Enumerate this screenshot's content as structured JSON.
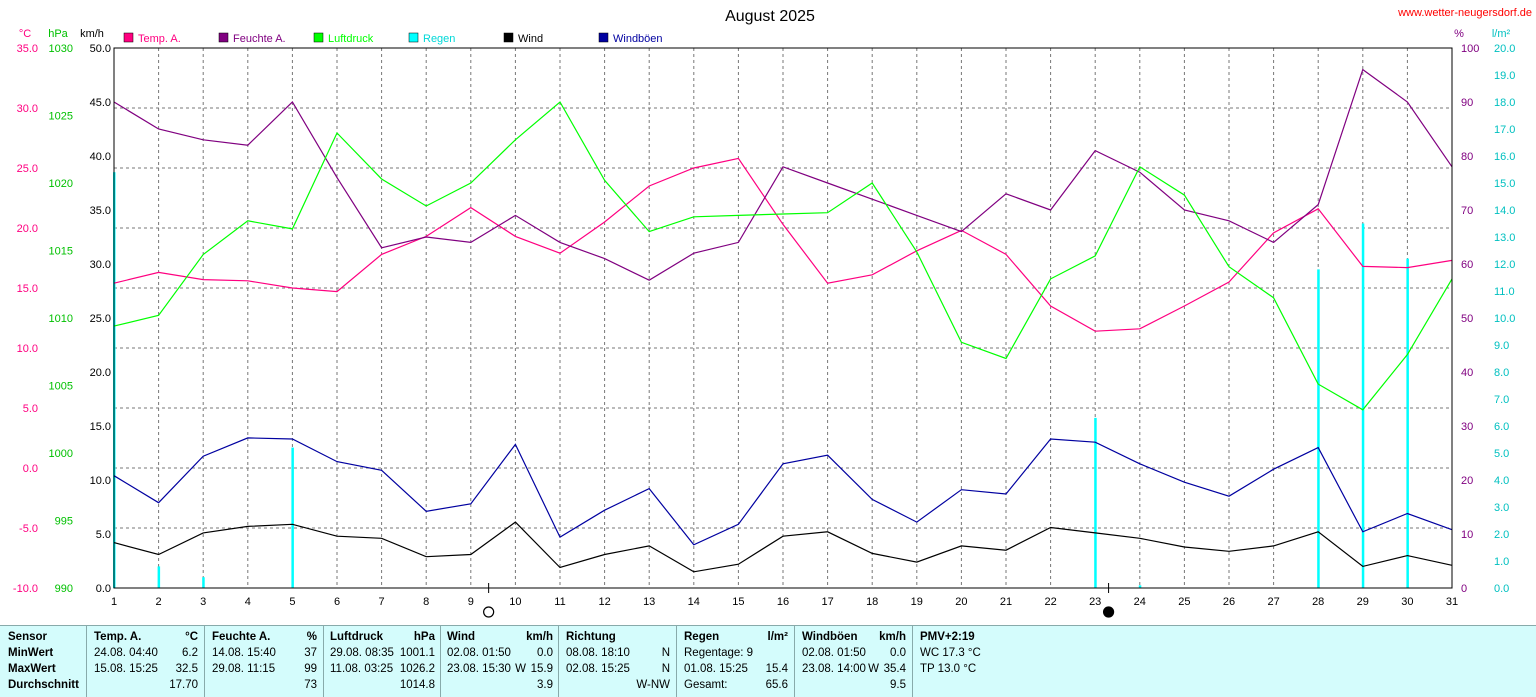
{
  "header": {
    "title": "August 2025",
    "site": "www.wetter-neugersdorf.de",
    "unit_temp": "°C",
    "unit_pressure": "hPa",
    "unit_wind": "km/h",
    "unit_humidity": "%",
    "unit_rain": "l/m²"
  },
  "legend": [
    {
      "label": "Temp. A.",
      "color": "#ff0080"
    },
    {
      "label": "Feuchte A.",
      "color": "#800080"
    },
    {
      "label": "Luftdruck",
      "color": "#00ff00"
    },
    {
      "label": "Regen",
      "color": "#00ffff"
    },
    {
      "label": "Wind",
      "color": "#000000"
    },
    {
      "label": "Windböen",
      "color": "#0000a0"
    }
  ],
  "chart_data": {
    "type": "line",
    "title": "August 2025",
    "x": [
      1,
      2,
      3,
      4,
      5,
      6,
      7,
      8,
      9,
      10,
      11,
      12,
      13,
      14,
      15,
      16,
      17,
      18,
      19,
      20,
      21,
      22,
      23,
      24,
      25,
      26,
      27,
      28,
      29,
      30,
      31
    ],
    "axes": {
      "temp": {
        "ticks": [
          "-10.0",
          "-5.0",
          "0.0",
          "5.0",
          "10.0",
          "15.0",
          "20.0",
          "25.0",
          "30.0",
          "35.0"
        ],
        "min": -10,
        "max": 35,
        "color": "#ff0080"
      },
      "pressure": {
        "ticks": [
          "990",
          "995",
          "1000",
          "1005",
          "1010",
          "1015",
          "1020",
          "1025",
          "1030"
        ],
        "min": 990,
        "max": 1030,
        "color": "#00c000"
      },
      "wind": {
        "ticks": [
          "0.0",
          "5.0",
          "10.0",
          "15.0",
          "20.0",
          "25.0",
          "30.0",
          "35.0",
          "40.0",
          "45.0",
          "50.0"
        ],
        "min": 0,
        "max": 50,
        "color": "#000000"
      },
      "humidity": {
        "ticks": [
          "0",
          "10",
          "20",
          "30",
          "40",
          "50",
          "60",
          "70",
          "80",
          "90",
          "100"
        ],
        "min": 0,
        "max": 100,
        "color": "#800080"
      },
      "rain": {
        "ticks": [
          "0.0",
          "1.0",
          "2.0",
          "3.0",
          "4.0",
          "5.0",
          "6.0",
          "7.0",
          "8.0",
          "9.0",
          "10.0",
          "11.0",
          "12.0",
          "13.0",
          "14.0",
          "15.0",
          "16.0",
          "17.0",
          "18.0",
          "19.0",
          "20.0"
        ],
        "min": 0,
        "max": 20,
        "color": "#00c0c0"
      }
    },
    "grid": true,
    "series": [
      {
        "name": "Temp. A.",
        "color": "#ff0080",
        "axis": "temp",
        "values": [
          15.4,
          16.3,
          15.7,
          15.6,
          15.0,
          14.7,
          17.8,
          19.3,
          21.7,
          19.3,
          17.9,
          20.5,
          23.5,
          25.0,
          25.8,
          20.3,
          15.4,
          16.1,
          18.1,
          19.8,
          17.8,
          13.5,
          11.4,
          11.6,
          13.5,
          15.5,
          19.6,
          21.6,
          16.8,
          16.7,
          17.3
        ]
      },
      {
        "name": "Feuchte A.",
        "color": "#800080",
        "axis": "humidity",
        "values": [
          90,
          85,
          83,
          82,
          90,
          76,
          63,
          65,
          64,
          69,
          64,
          61,
          57,
          62,
          64,
          78,
          75,
          72,
          69,
          66,
          73,
          70,
          81,
          77,
          70,
          68,
          64,
          71,
          96,
          90,
          78
        ]
      },
      {
        "name": "Luftdruck",
        "color": "#00ff00",
        "axis": "pressure",
        "values": [
          1009.4,
          1010.2,
          1014.7,
          1017.2,
          1016.6,
          1023.7,
          1020.3,
          1018.3,
          1020.0,
          1023.2,
          1026.0,
          1020.2,
          1016.4,
          1017.5,
          1017.6,
          1017.7,
          1017.8,
          1020.0,
          1014.9,
          1008.2,
          1007.0,
          1012.9,
          1014.6,
          1021.2,
          1019.1,
          1013.8,
          1011.5,
          1005.1,
          1003.2,
          1007.3,
          1012.9
        ]
      },
      {
        "name": "Regen",
        "color": "#00ffff",
        "axis": "rain",
        "type": "bar",
        "values": [
          15.4,
          0.8,
          0.4,
          0.0,
          5.2,
          0.0,
          0.0,
          0.0,
          0.0,
          0.0,
          0.0,
          0.0,
          0.0,
          0.0,
          0.0,
          0.0,
          0.0,
          0.0,
          0.0,
          0.0,
          0.0,
          0.0,
          6.3,
          0.1,
          0.0,
          0.0,
          0.0,
          11.8,
          13.5,
          12.2,
          0.0
        ]
      },
      {
        "name": "Wind",
        "color": "#000000",
        "axis": "wind",
        "values": [
          4.2,
          3.1,
          5.1,
          5.7,
          5.9,
          4.8,
          4.6,
          2.9,
          3.1,
          6.1,
          1.9,
          3.1,
          3.9,
          1.5,
          2.2,
          4.8,
          5.2,
          3.2,
          2.4,
          3.9,
          3.5,
          5.6,
          5.1,
          4.6,
          3.8,
          3.4,
          3.9,
          5.2,
          2.0,
          3.0,
          2.1
        ]
      },
      {
        "name": "Windböen",
        "color": "#0000a0",
        "axis": "wind",
        "values": [
          10.4,
          7.9,
          12.2,
          13.9,
          13.8,
          11.7,
          10.9,
          7.1,
          7.8,
          13.3,
          4.7,
          7.2,
          9.2,
          4.0,
          5.9,
          11.5,
          12.3,
          8.2,
          6.1,
          9.1,
          8.7,
          13.8,
          13.5,
          11.5,
          9.8,
          8.5,
          11.0,
          13.0,
          5.2,
          6.9,
          5.4
        ]
      }
    ],
    "moon": [
      {
        "day": 9.4,
        "phase": "full"
      },
      {
        "day": 23.3,
        "phase": "new"
      }
    ]
  },
  "stats": {
    "sensor": {
      "title": "Sensor",
      "rows": [
        "MinWert",
        "MaxWert",
        "Durchschnitt"
      ]
    },
    "temp": {
      "title": "Temp. A.",
      "unit": "°C",
      "min": {
        "date": "24.08. 04:40",
        "value": "6.2"
      },
      "max": {
        "date": "15.08. 15:25",
        "value": "32.5"
      },
      "avg": "17.70"
    },
    "humidity": {
      "title": "Feuchte A.",
      "unit": "%",
      "min": {
        "date": "14.08. 15:40",
        "value": "37"
      },
      "max": {
        "date": "29.08. 11:15",
        "value": "99"
      },
      "avg": "73"
    },
    "pressure": {
      "title": "Luftdruck",
      "unit": "hPa",
      "min": {
        "date": "29.08. 08:35",
        "value": "1001.1"
      },
      "max": {
        "date": "11.08. 03:25",
        "value": "1026.2"
      },
      "avg": "1014.8"
    },
    "wind": {
      "title": "Wind",
      "unit": "km/h",
      "min": {
        "date": "02.08. 01:50",
        "value": "0.0"
      },
      "max": {
        "date": "23.08. 15:30",
        "dir": "W",
        "value": "15.9"
      },
      "avg": "3.9"
    },
    "direction": {
      "title": "Richtung",
      "min": {
        "date": "08.08. 18:10",
        "value": "N"
      },
      "max": {
        "date": "02.08. 15:25",
        "value": "N"
      },
      "avg": "W-NW"
    },
    "rain": {
      "title": "Regen",
      "unit": "l/m²",
      "row1": "Regentage: 9",
      "row2": {
        "date": "01.08. 15:25",
        "value": "15.4"
      },
      "row3": {
        "label": "Gesamt:",
        "value": "65.6"
      }
    },
    "gust": {
      "title": "Windböen",
      "unit": "km/h",
      "min": {
        "date": "02.08. 01:50",
        "value": "0.0"
      },
      "max": {
        "date": "23.08. 14:00",
        "dir": "W",
        "value": "35.4"
      },
      "avg": "9.5"
    },
    "pmv": {
      "title": "PMV+2:19",
      "row1": "WC 17.3 °C",
      "row2": "TP 13.0 °C"
    }
  }
}
